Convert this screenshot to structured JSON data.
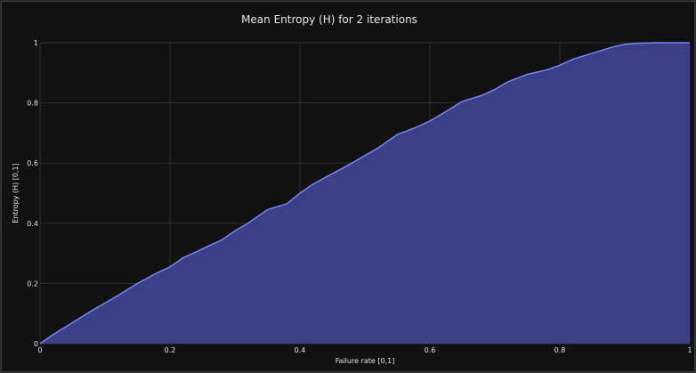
{
  "chart_data": {
    "type": "area",
    "title": "Mean Entropy (H) for 2 iterations",
    "xlabel": "Failure rate [0,1]",
    "ylabel": "Entropy (H) [0,1]",
    "xlim": [
      0,
      1
    ],
    "ylim": [
      0,
      1
    ],
    "x_ticks": [
      "0",
      "0.2",
      "0.4",
      "0.6",
      "0.8",
      "1"
    ],
    "y_ticks": [
      "0",
      "0.2",
      "0.4",
      "0.6",
      "0.8",
      "1"
    ],
    "grid": true,
    "legend": "none",
    "colors": {
      "background": "#111111",
      "fill": "#3b3f87",
      "line": "#7a84f3",
      "grid": "#2e2e2e",
      "text": "#e6e6e6"
    },
    "series": [
      {
        "x": [
          0,
          0.02,
          0.05,
          0.08,
          0.1,
          0.12,
          0.15,
          0.18,
          0.2,
          0.22,
          0.25,
          0.28,
          0.3,
          0.32,
          0.35,
          0.38,
          0.4,
          0.42,
          0.45,
          0.48,
          0.5,
          0.52,
          0.55,
          0.58,
          0.6,
          0.62,
          0.65,
          0.68,
          0.7,
          0.72,
          0.75,
          0.78,
          0.8,
          0.82,
          0.85,
          0.88,
          0.9,
          0.92,
          0.95,
          0.98,
          1
        ],
        "values": [
          0,
          0.03,
          0.07,
          0.11,
          0.135,
          0.16,
          0.2,
          0.235,
          0.255,
          0.285,
          0.315,
          0.345,
          0.375,
          0.4,
          0.445,
          0.465,
          0.5,
          0.53,
          0.565,
          0.6,
          0.625,
          0.65,
          0.695,
          0.72,
          0.74,
          0.765,
          0.805,
          0.825,
          0.845,
          0.87,
          0.895,
          0.91,
          0.925,
          0.945,
          0.965,
          0.985,
          0.995,
          0.998,
          1,
          1,
          1
        ]
      }
    ]
  }
}
